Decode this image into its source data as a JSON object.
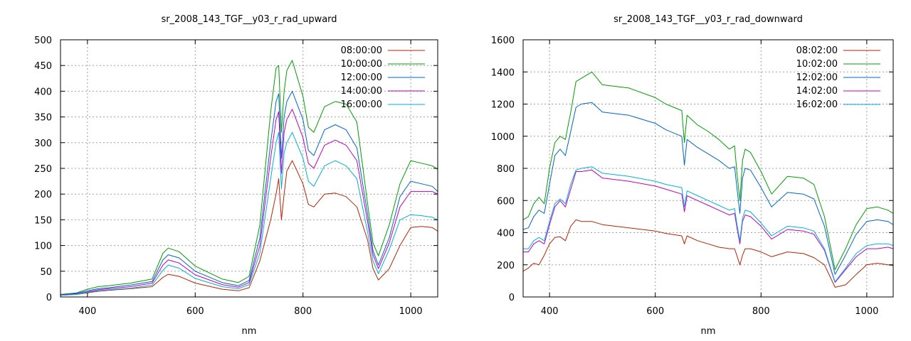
{
  "chart_data": [
    {
      "type": "line",
      "title": "sr_2008_143_TGF__y03_r_rad_upward",
      "xlabel": "nm",
      "ylabel": "",
      "xlim": [
        350,
        1050
      ],
      "ylim": [
        0,
        500
      ],
      "grid": true,
      "legend_position": "top-right",
      "x_ticks": [
        400,
        600,
        800,
        1000
      ],
      "y_ticks": [
        0,
        50,
        100,
        150,
        200,
        250,
        300,
        350,
        400,
        450,
        500
      ],
      "x": [
        350,
        380,
        400,
        420,
        440,
        480,
        520,
        540,
        550,
        570,
        600,
        650,
        680,
        700,
        720,
        740,
        750,
        755,
        760,
        765,
        770,
        780,
        800,
        810,
        820,
        840,
        860,
        880,
        900,
        920,
        930,
        940,
        960,
        980,
        1000,
        1020,
        1040,
        1050
      ],
      "series": [
        {
          "name": "08:00:00",
          "color": "#bb2200",
          "values": [
            3,
            5,
            8,
            11,
            13,
            16,
            20,
            38,
            44,
            40,
            27,
            15,
            12,
            18,
            70,
            150,
            200,
            230,
            150,
            200,
            245,
            265,
            220,
            180,
            175,
            200,
            202,
            195,
            175,
            110,
            55,
            33,
            55,
            100,
            135,
            137,
            135,
            128
          ]
        },
        {
          "name": "10:00:00",
          "color": "#00a000",
          "values": [
            5,
            8,
            15,
            20,
            22,
            27,
            35,
            85,
            95,
            88,
            60,
            35,
            28,
            40,
            140,
            360,
            445,
            450,
            320,
            400,
            440,
            460,
            390,
            330,
            320,
            370,
            380,
            375,
            340,
            180,
            105,
            80,
            140,
            220,
            265,
            260,
            255,
            248
          ]
        },
        {
          "name": "12:00:00",
          "color": "#0066cc",
          "values": [
            4,
            7,
            12,
            16,
            18,
            23,
            30,
            72,
            82,
            76,
            50,
            28,
            22,
            32,
            115,
            300,
            380,
            395,
            270,
            350,
            380,
            400,
            345,
            285,
            275,
            325,
            335,
            325,
            290,
            160,
            90,
            62,
            115,
            195,
            225,
            220,
            215,
            205
          ]
        },
        {
          "name": "14:00:00",
          "color": "#c000c0",
          "values": [
            4,
            6,
            10,
            14,
            16,
            20,
            27,
            62,
            72,
            66,
            43,
            24,
            19,
            28,
            100,
            270,
            345,
            360,
            240,
            320,
            345,
            365,
            310,
            260,
            250,
            295,
            305,
            295,
            265,
            145,
            82,
            55,
            105,
            175,
            205,
            205,
            205,
            200
          ]
        },
        {
          "name": "16:00:00",
          "color": "#00b0e0",
          "values": [
            3,
            5,
            9,
            12,
            14,
            17,
            23,
            52,
            62,
            56,
            36,
            20,
            16,
            24,
            85,
            230,
            300,
            320,
            210,
            280,
            300,
            320,
            270,
            225,
            215,
            255,
            265,
            255,
            230,
            125,
            70,
            45,
            92,
            150,
            160,
            158,
            155,
            150
          ]
        }
      ]
    },
    {
      "type": "line",
      "title": "sr_2008_143_TGF__y03_r_rad_downward",
      "xlabel": "nm",
      "ylabel": "",
      "xlim": [
        350,
        1050
      ],
      "ylim": [
        0,
        1600
      ],
      "grid": true,
      "legend_position": "top-right",
      "x_ticks": [
        400,
        600,
        800,
        1000
      ],
      "y_ticks": [
        0,
        200,
        400,
        600,
        800,
        1000,
        1200,
        1400,
        1600
      ],
      "x": [
        350,
        360,
        370,
        380,
        390,
        400,
        410,
        420,
        430,
        440,
        450,
        460,
        480,
        500,
        550,
        600,
        620,
        650,
        655,
        660,
        680,
        700,
        720,
        740,
        750,
        755,
        760,
        765,
        770,
        780,
        800,
        820,
        850,
        880,
        900,
        920,
        940,
        960,
        980,
        1000,
        1020,
        1040,
        1050
      ],
      "series": [
        {
          "name": "08:02:00",
          "color": "#bb2200",
          "values": [
            160,
            180,
            210,
            200,
            260,
            330,
            370,
            375,
            350,
            440,
            480,
            470,
            470,
            450,
            430,
            410,
            395,
            380,
            330,
            380,
            350,
            330,
            310,
            300,
            300,
            250,
            200,
            260,
            300,
            300,
            280,
            250,
            280,
            270,
            245,
            200,
            60,
            75,
            140,
            200,
            210,
            200,
            195
          ]
        },
        {
          "name": "10:02:00",
          "color": "#00a000",
          "values": [
            480,
            500,
            580,
            620,
            580,
            800,
            960,
            1000,
            980,
            1150,
            1340,
            1360,
            1400,
            1320,
            1300,
            1240,
            1200,
            1160,
            960,
            1130,
            1070,
            1030,
            980,
            920,
            940,
            750,
            600,
            850,
            920,
            900,
            780,
            640,
            750,
            740,
            700,
            500,
            170,
            300,
            450,
            550,
            560,
            540,
            520
          ]
        },
        {
          "name": "12:02:00",
          "color": "#0066cc",
          "values": [
            420,
            430,
            500,
            540,
            520,
            700,
            880,
            920,
            880,
            1030,
            1180,
            1200,
            1210,
            1150,
            1130,
            1080,
            1040,
            1000,
            820,
            980,
            930,
            890,
            850,
            800,
            810,
            660,
            520,
            740,
            800,
            790,
            680,
            560,
            650,
            640,
            610,
            440,
            140,
            260,
            390,
            470,
            480,
            470,
            450
          ]
        },
        {
          "name": "14:02:00",
          "color": "#c000c0",
          "values": [
            280,
            280,
            330,
            350,
            330,
            450,
            560,
            600,
            560,
            670,
            780,
            780,
            790,
            740,
            720,
            690,
            670,
            640,
            530,
            630,
            600,
            570,
            540,
            510,
            520,
            420,
            330,
            470,
            510,
            500,
            440,
            360,
            420,
            410,
            390,
            290,
            90,
            170,
            250,
            300,
            300,
            310,
            300
          ]
        },
        {
          "name": "16:02:00",
          "color": "#00b0e0",
          "values": [
            300,
            300,
            350,
            370,
            350,
            470,
            580,
            610,
            580,
            700,
            790,
            800,
            810,
            770,
            750,
            720,
            700,
            680,
            560,
            660,
            630,
            600,
            570,
            540,
            550,
            440,
            350,
            490,
            540,
            530,
            460,
            380,
            440,
            430,
            410,
            300,
            95,
            180,
            270,
            320,
            330,
            330,
            320
          ]
        }
      ]
    }
  ]
}
